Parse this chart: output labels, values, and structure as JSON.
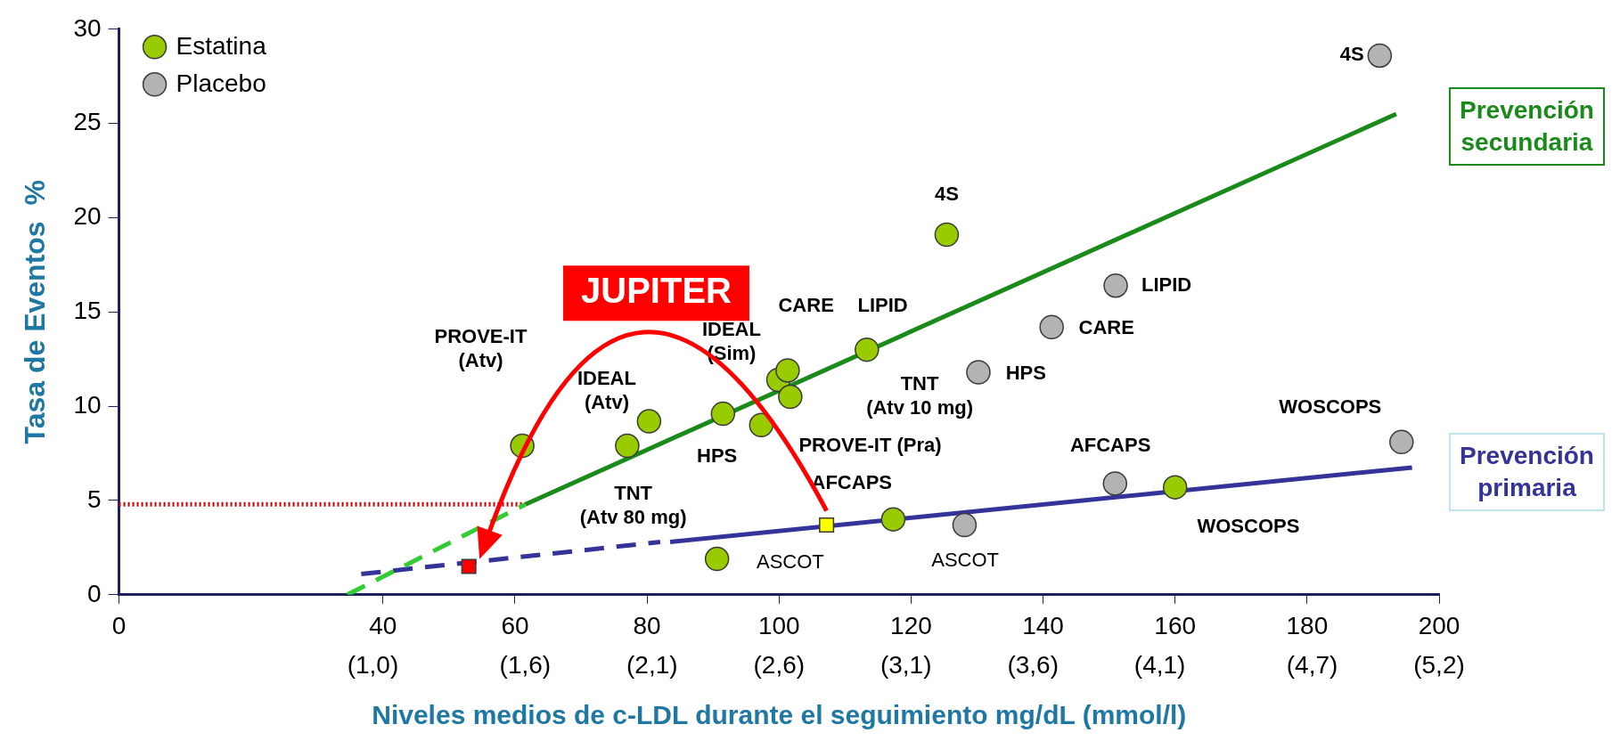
{
  "chart_data": {
    "type": "scatter",
    "xlabel": "Niveles medios de c-LDL durante el seguimiento mg/dL (mmol/l)",
    "ylabel": "Tasa de Eventos  %",
    "xlim": [
      0,
      200
    ],
    "xticks": [
      0,
      40,
      60,
      80,
      100,
      120,
      140,
      160,
      180,
      200
    ],
    "x2lim": [
      0,
      5.2
    ],
    "x2ticks": [
      {
        "value": 1.0,
        "label": "(1,0)"
      },
      {
        "value": 1.6,
        "label": "(1,6)"
      },
      {
        "value": 2.1,
        "label": "(2,1)"
      },
      {
        "value": 2.6,
        "label": "(2,6)"
      },
      {
        "value": 3.1,
        "label": "(3,1)"
      },
      {
        "value": 3.6,
        "label": "(3,6)"
      },
      {
        "value": 4.1,
        "label": "(4,1)"
      },
      {
        "value": 4.7,
        "label": "(4,7)"
      },
      {
        "value": 5.2,
        "label": "(5,2)"
      }
    ],
    "ylim": [
      0,
      30
    ],
    "yticks": [
      0,
      5,
      10,
      15,
      20,
      25,
      30
    ],
    "grid": false,
    "legend": "top left",
    "marker": "circle",
    "series": [
      {
        "type": "line",
        "color": "#33cc33",
        "line_style": "dashed",
        "marker": "none",
        "x": [
          34.6,
          61.6
        ],
        "values": [
          0,
          4.8
        ]
      },
      {
        "type": "line",
        "color": "#1a8a1a",
        "line_style": "solid",
        "marker": "none",
        "x": [
          61.6,
          193.5
        ],
        "values": [
          4.8,
          25.5
        ]
      },
      {
        "type": "line",
        "color": "#333399",
        "line_style": "dashed",
        "marker": "none",
        "x": [
          36.7,
          82
        ],
        "values": [
          1.1,
          2.8
        ]
      },
      {
        "type": "line",
        "color": "#333399",
        "line_style": "solid",
        "marker": "none",
        "x": [
          83.5,
          195.9
        ],
        "values": [
          2.8,
          6.75
        ]
      },
      {
        "type": "line",
        "color": "#cc0000",
        "line_style": "dotted",
        "marker": "none",
        "x": [
          0,
          61.6
        ],
        "values": [
          4.8,
          4.8
        ]
      },
      {
        "name": "Estatina",
        "type": "scatter",
        "color": "#99cc00",
        "x": [
          61.1,
          77,
          80.3,
          91.5,
          90.6,
          97.3,
          99.9,
          101.3,
          101.7,
          113.3,
          125.4,
          117.3,
          160
        ],
        "values": [
          7.9,
          7.9,
          9.2,
          9.6,
          1.9,
          9.0,
          11.4,
          11.9,
          10.5,
          13.0,
          19.1,
          4.0,
          5.7
        ]
      },
      {
        "name": "Placebo",
        "type": "scatter",
        "color": "#b3b3b3",
        "x": [
          191,
          151,
          141.3,
          130.2,
          194.3,
          150.9,
          128.1
        ],
        "values": [
          28.6,
          16.4,
          14.2,
          11.8,
          8.1,
          5.9,
          3.7
        ]
      },
      {
        "type": "scatter",
        "marker": "square",
        "colors": [
          "#ff0000",
          "#ffff00"
        ],
        "x": [
          53,
          107.2
        ],
        "values": [
          1.5,
          3.7
        ]
      }
    ],
    "annotations": [
      "JUPITER",
      "Prevención\nsecundaria",
      "Prevención\nprimaria",
      "PROVE-IT\n(Atv)",
      "IDEAL\n(Atv)",
      "TNT\n(Atv 80 mg)",
      "HPS",
      "IDEAL\n(Sim)",
      "CARE",
      "LIPID",
      "TNT\n(Atv 10 mg)",
      "PROVE-IT (Pra)",
      "4S",
      "AFCAPS",
      "WOSCOPS",
      "ASCOT",
      "ASCOT",
      "HPS",
      "CARE",
      "LIPID",
      "4S",
      "WOSCOPS",
      "AFCAPS"
    ]
  }
}
